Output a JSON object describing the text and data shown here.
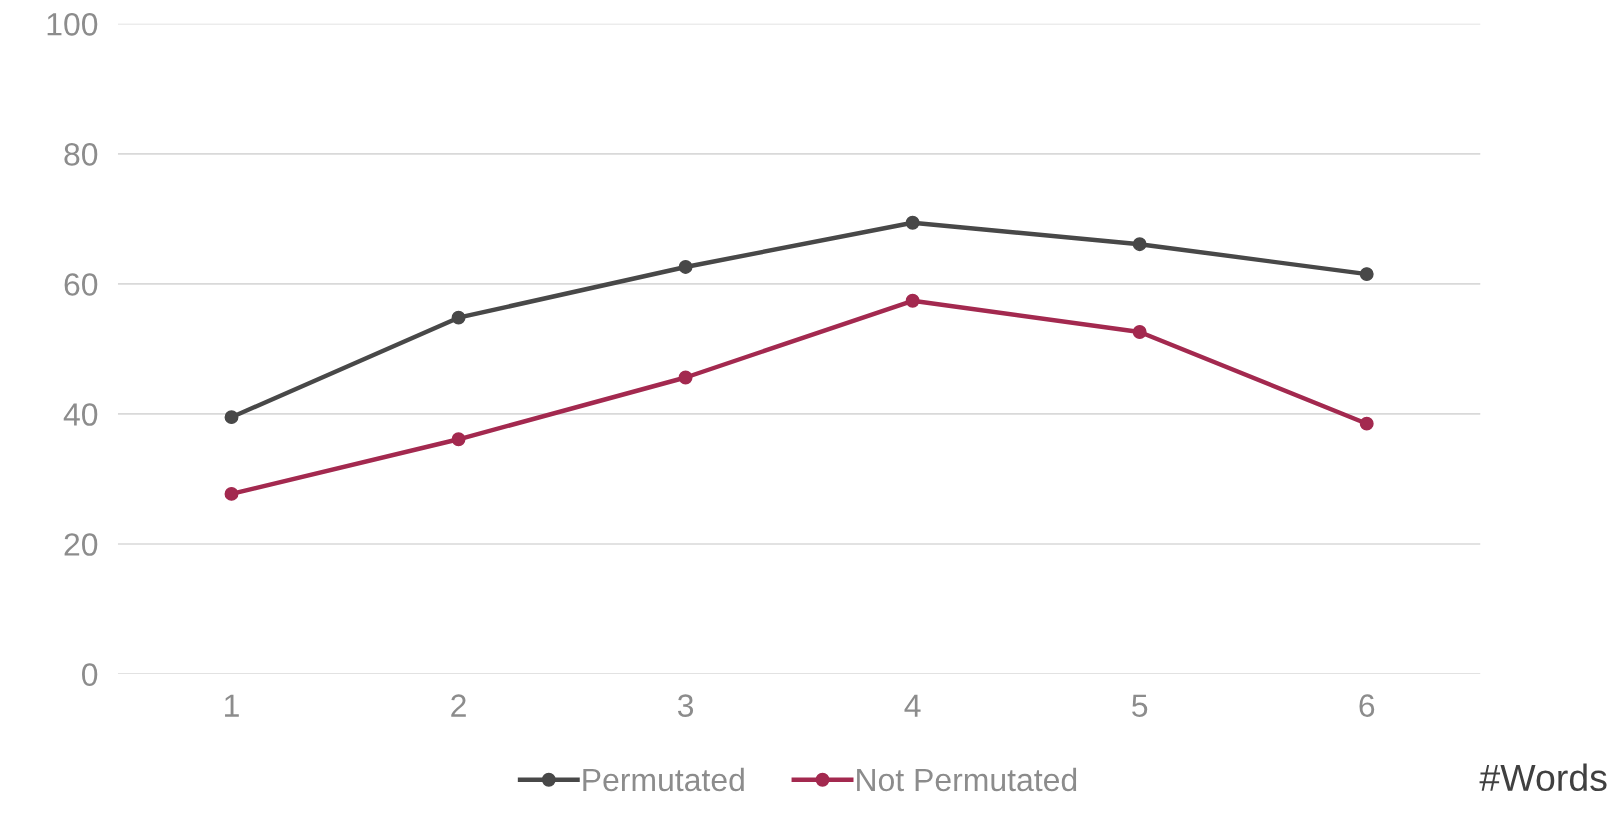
{
  "chart_data": {
    "type": "line",
    "xlabel": "#Words",
    "categories": [
      "1",
      "2",
      "3",
      "4",
      "5",
      "6"
    ],
    "series": [
      {
        "name": "Permutated",
        "color": "#484848",
        "values": [
          39.5,
          54.8,
          62.6,
          69.4,
          66.1,
          61.5
        ]
      },
      {
        "name": "Not Permutated",
        "color": "#a3294f",
        "values": [
          27.7,
          36.1,
          45.6,
          57.4,
          52.6,
          38.5
        ]
      }
    ],
    "ylim": [
      0,
      100
    ],
    "yticks": [
      0,
      20,
      40,
      60,
      80,
      100
    ],
    "grid": "y",
    "legend": "bottom",
    "marker": "circle",
    "line_style": "solid"
  }
}
